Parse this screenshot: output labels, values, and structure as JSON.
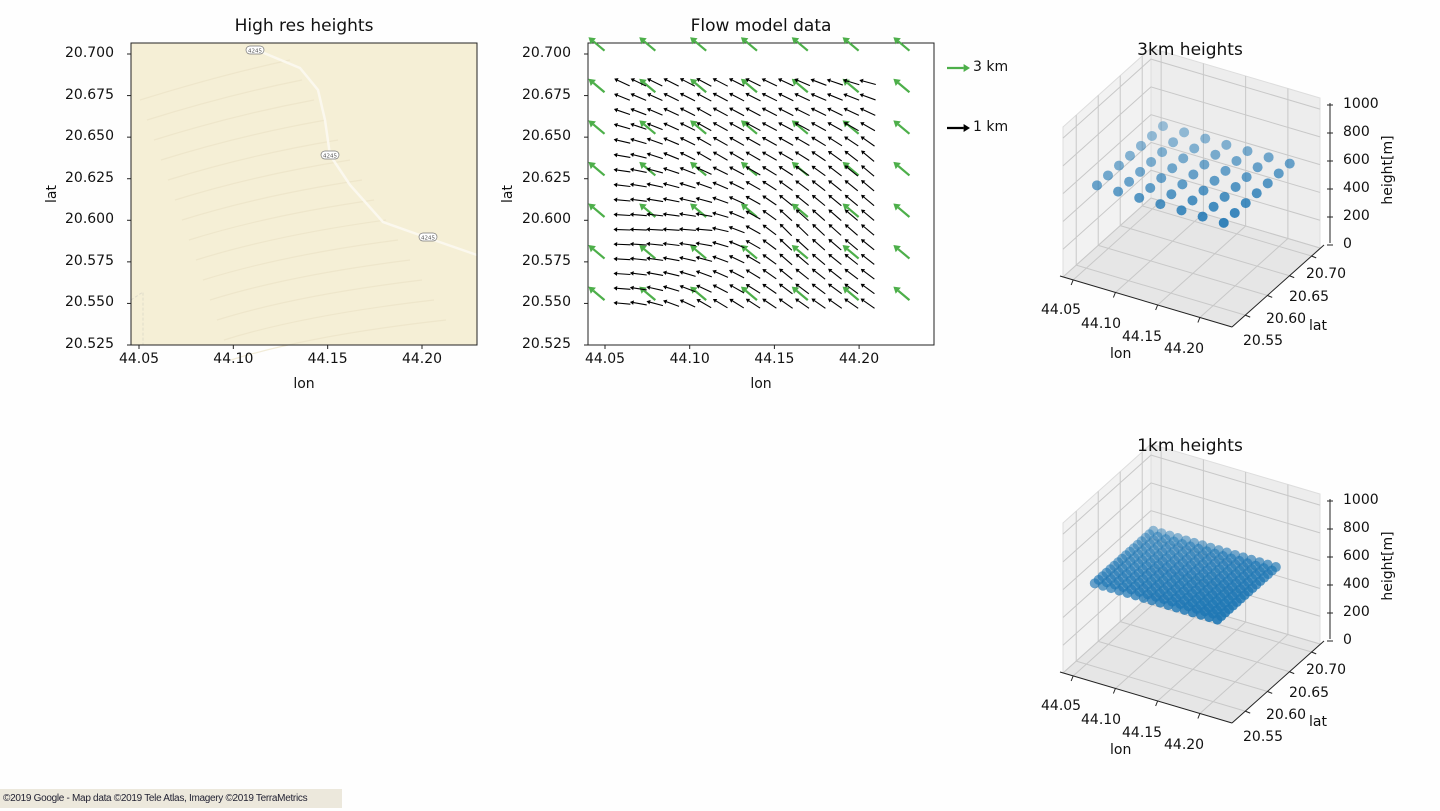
{
  "attribution": "©2019 Google - Map data ©2019 Tele Atlas, Imagery ©2019 TerraMetrics",
  "chart_data": [
    {
      "type": "map",
      "title": "High res heights",
      "xlabel": "lon",
      "ylabel": "lat",
      "xlim": [
        44.046,
        44.229
      ],
      "ylim": [
        20.525,
        20.707
      ],
      "xticks": [
        "44.05",
        "44.10",
        "44.15",
        "44.20"
      ],
      "yticks": [
        "20.525",
        "20.550",
        "20.575",
        "20.600",
        "20.625",
        "20.650",
        "20.675",
        "20.700"
      ],
      "road_label": "4245",
      "road_color": "#fbf8ee",
      "land_color": "#f5efd6"
    },
    {
      "type": "quiver",
      "title": "Flow model data",
      "xlabel": "lon",
      "ylabel": "lat",
      "xlim": [
        44.04,
        44.244
      ],
      "ylim": [
        20.525,
        20.707
      ],
      "xticks": [
        "44.05",
        "44.10",
        "44.15",
        "44.20"
      ],
      "yticks": [
        "20.525",
        "20.550",
        "20.575",
        "20.600",
        "20.625",
        "20.650",
        "20.675",
        "20.700"
      ],
      "legend": [
        {
          "label": "3 km",
          "color": "#4daf4a"
        },
        {
          "label": "1 km",
          "color": "#000000"
        }
      ],
      "series": [
        {
          "name": "3 km",
          "color": "#4daf4a",
          "lon": [
            44.045,
            44.075,
            44.105,
            44.135,
            44.165,
            44.195,
            44.225
          ],
          "lat": [
            20.555,
            20.58,
            20.605,
            20.63,
            20.655,
            20.68,
            20.705
          ],
          "direction_deg": 140
        },
        {
          "name": "1 km",
          "color": "#000000",
          "lon_range": [
            44.06,
            44.205
          ],
          "lon_count": 16,
          "lat_range": [
            20.55,
            20.683
          ],
          "lat_count": 16,
          "direction_deg_coarse_grid_top_to_bottom": [
            [
              155,
              152,
              155,
              165
            ],
            [
              170,
              150,
              150,
              140
            ],
            [
              178,
              175,
              135,
              140
            ],
            [
              175,
              150,
              145,
              145
            ]
          ]
        }
      ]
    },
    {
      "type": "scatter3d",
      "title": "3km heights",
      "xlabel": "lon",
      "ylabel": "lat",
      "zlabel": "height[m]",
      "xticks": [
        "44.05",
        "44.10",
        "44.15",
        "44.20"
      ],
      "yticks": [
        "20.55",
        "20.60",
        "20.65",
        "20.70"
      ],
      "zticks": [
        "0",
        "200",
        "400",
        "600",
        "800",
        "1000"
      ],
      "xlim": [
        44.038,
        44.238
      ],
      "ylim": [
        20.52,
        20.72
      ],
      "zlim": [
        0,
        1080
      ],
      "grid_lon_range": [
        44.06,
        44.21
      ],
      "grid_lat_range": [
        20.555,
        20.705
      ],
      "grid_count": 7,
      "height": 600,
      "color": "#1f77b4"
    },
    {
      "type": "scatter3d",
      "title": "1km heights",
      "xlabel": "lon",
      "ylabel": "lat",
      "zlabel": "height[m]",
      "xticks": [
        "44.05",
        "44.10",
        "44.15",
        "44.20"
      ],
      "yticks": [
        "20.55",
        "20.60",
        "20.65",
        "20.70"
      ],
      "zticks": [
        "0",
        "200",
        "400",
        "600",
        "800",
        "1000"
      ],
      "xlim": [
        44.038,
        44.238
      ],
      "ylim": [
        20.52,
        20.72
      ],
      "zlim": [
        0,
        1080
      ],
      "grid_lon_range": [
        44.06,
        44.205
      ],
      "grid_lat_range": [
        20.55,
        20.683
      ],
      "grid_count": 16,
      "height": 600,
      "color": "#1f77b4"
    }
  ]
}
